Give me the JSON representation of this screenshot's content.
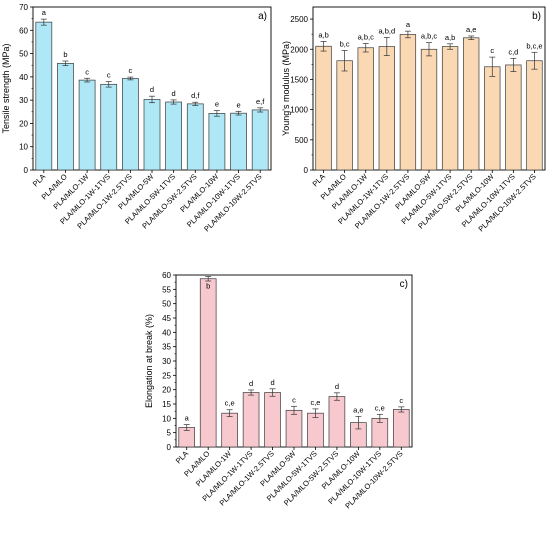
{
  "chart_data": [
    {
      "type": "bar",
      "panel_label": "a)",
      "ylabel": "Tensile strength (MPa)",
      "xlabel": "",
      "ylim": [
        0,
        70
      ],
      "yticks": [
        0,
        10,
        20,
        30,
        40,
        50,
        60,
        70
      ],
      "bar_color": "#aee7f5",
      "categories": [
        "PLA",
        "PLA/MLO",
        "PLA/MLO-1W",
        "PLA/MLO-1W-1TVS",
        "PLA/MLO-1W-2.5TVS",
        "PLA/MLO-5W",
        "PLA/MLO-5W-1TVS",
        "PLA/MLO-5W-2.5TVS",
        "PLA/MLO-10W",
        "PLA/MLO-10W-1TVS",
        "PLA/MLO-10W-2.5TVS"
      ],
      "values": [
        63.5,
        45.8,
        38.6,
        36.8,
        39.3,
        30.3,
        29.2,
        28.4,
        24.3,
        24.4,
        25.8
      ],
      "errors": [
        1.3,
        1.0,
        0.8,
        1.2,
        0.6,
        1.4,
        0.9,
        0.7,
        1.2,
        0.8,
        0.9
      ],
      "letters": [
        "a",
        "b",
        "c",
        "c",
        "c",
        "d",
        "d",
        "d,f",
        "e",
        "e",
        "e,f"
      ]
    },
    {
      "type": "bar",
      "panel_label": "b)",
      "ylabel": "Young's modulus (MPa)",
      "xlabel": "",
      "ylim": [
        0,
        2700
      ],
      "yticks": [
        0,
        500,
        1000,
        1500,
        2000,
        2500
      ],
      "bar_color": "#fad8b3",
      "categories": [
        "PLA",
        "PLA/MLO",
        "PLA/MLO-1W",
        "PLA/MLO-1W-1TVS",
        "PLA/MLO-1W-2.5TVS",
        "PLA/MLO-5W",
        "PLA/MLO-5W-1TVS",
        "PLA/MLO-5W-2.5TVS",
        "PLA/MLO-10W",
        "PLA/MLO-10W-1TVS",
        "PLA/MLO-10W-2.5TVS"
      ],
      "values": [
        2050,
        1810,
        2025,
        2045,
        2245,
        2000,
        2045,
        2190,
        1710,
        1740,
        1810
      ],
      "errors": [
        80,
        170,
        70,
        150,
        55,
        110,
        45,
        30,
        160,
        110,
        140
      ],
      "letters": [
        "a,b",
        "b,c",
        "a,b,c",
        "a,b,d",
        "a",
        "a,b,c",
        "a,b",
        "a,e",
        "c",
        "c,d",
        "b,c,e"
      ]
    },
    {
      "type": "bar",
      "panel_label": "c)",
      "ylabel": "Elongation at break (%)",
      "xlabel": "",
      "ylim": [
        0,
        60
      ],
      "yticks": [
        0,
        5,
        10,
        15,
        20,
        25,
        30,
        35,
        40,
        45,
        50,
        55,
        60
      ],
      "bar_color": "#f8c8cf",
      "categories": [
        "PLA",
        "PLA/MLO",
        "PLA/MLO-1W",
        "PLA/MLO-1W-1TVS",
        "PLA/MLO-1W-2.5TVS",
        "PLA/MLO-5W",
        "PLA/MLO-5W-1TVS",
        "PLA/MLO-5W-2.5TVS",
        "PLA/MLO-10W",
        "PLA/MLO-10W-1TVS",
        "PLA/MLO-10W-2.5TVS"
      ],
      "values": [
        6.8,
        58.7,
        11.8,
        19.0,
        19.0,
        12.8,
        11.8,
        17.6,
        8.5,
        10.0,
        13.1
      ],
      "errors": [
        1.0,
        0.8,
        1.2,
        0.9,
        1.3,
        1.4,
        1.5,
        1.3,
        2.2,
        1.4,
        0.9
      ],
      "letters": [
        "a",
        "b",
        "c,e",
        "d",
        "d",
        "c",
        "c,e",
        "d",
        "a,e",
        "c,e",
        "c"
      ]
    }
  ]
}
